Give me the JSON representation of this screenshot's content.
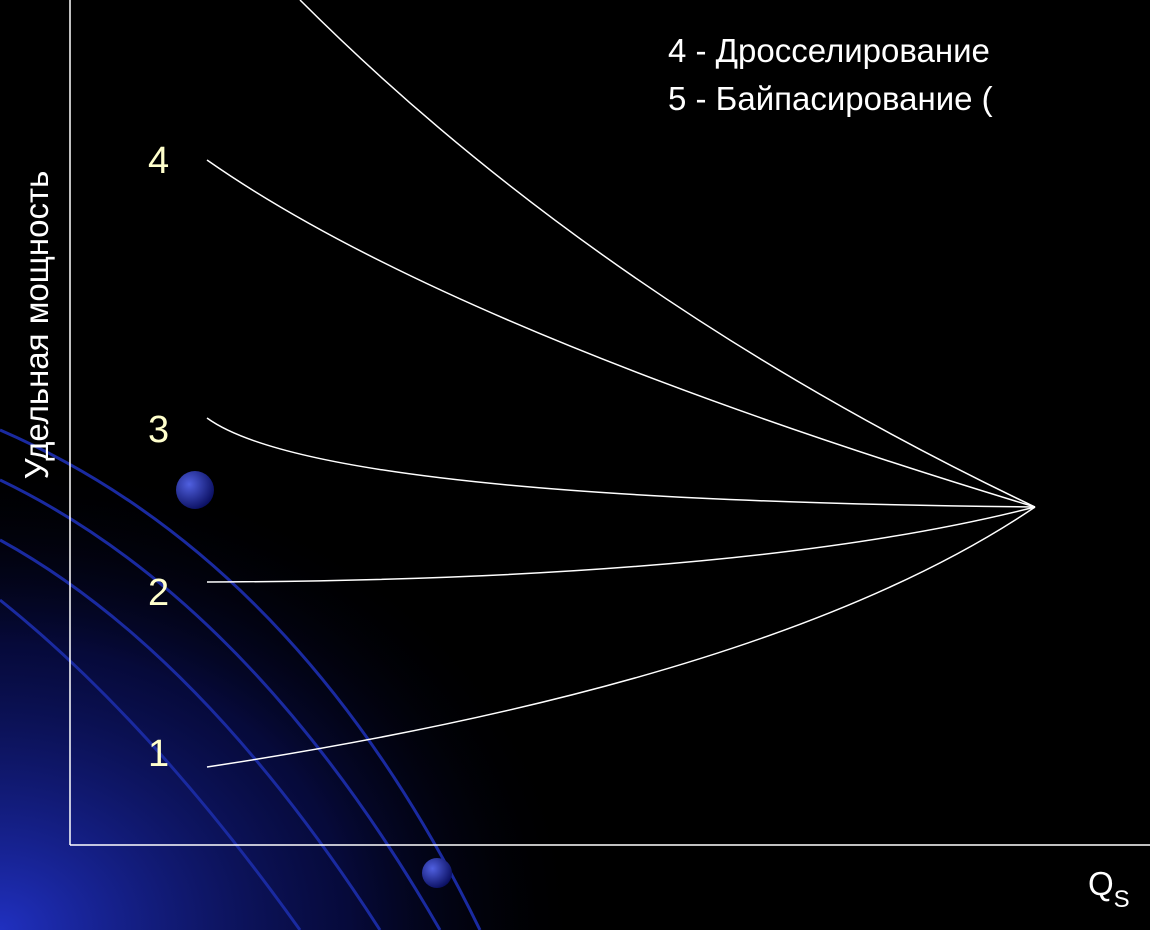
{
  "legend": {
    "items": [
      "4 - Дросселирование",
      "5 - Байпасирование ("
    ]
  },
  "axes": {
    "y_label": "Удельная мощность",
    "x_label": "Q",
    "x_label_sub": "S"
  },
  "curve_labels": [
    "4",
    "3",
    "2",
    "1"
  ]
}
